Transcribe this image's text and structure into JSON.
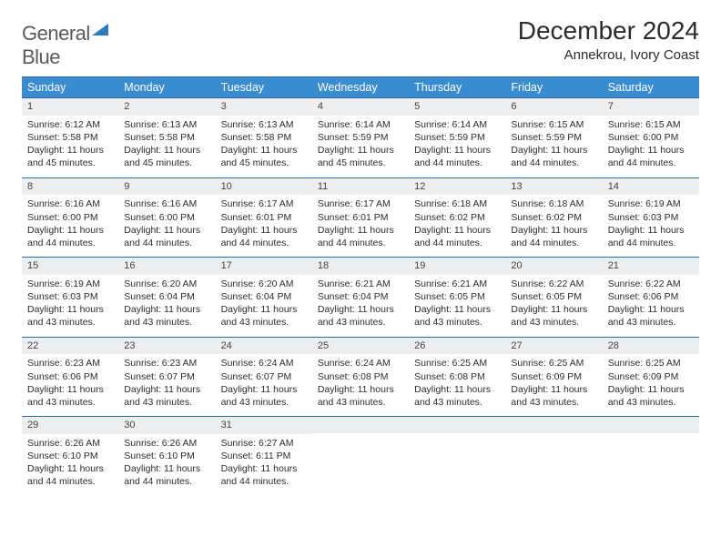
{
  "logo": {
    "word1": "General",
    "word2": "Blue"
  },
  "title": "December 2024",
  "location": "Annekrou, Ivory Coast",
  "day_headers": [
    "Sunday",
    "Monday",
    "Tuesday",
    "Wednesday",
    "Thursday",
    "Friday",
    "Saturday"
  ],
  "colors": {
    "header_bg": "#3a8cd1",
    "header_border": "#2d6ba8",
    "daynum_bg": "#eceef0",
    "logo_blue": "#2d7bc0"
  },
  "weeks": [
    [
      {
        "n": "1",
        "sr": "Sunrise: 6:12 AM",
        "ss": "Sunset: 5:58 PM",
        "d1": "Daylight: 11 hours",
        "d2": "and 45 minutes."
      },
      {
        "n": "2",
        "sr": "Sunrise: 6:13 AM",
        "ss": "Sunset: 5:58 PM",
        "d1": "Daylight: 11 hours",
        "d2": "and 45 minutes."
      },
      {
        "n": "3",
        "sr": "Sunrise: 6:13 AM",
        "ss": "Sunset: 5:58 PM",
        "d1": "Daylight: 11 hours",
        "d2": "and 45 minutes."
      },
      {
        "n": "4",
        "sr": "Sunrise: 6:14 AM",
        "ss": "Sunset: 5:59 PM",
        "d1": "Daylight: 11 hours",
        "d2": "and 45 minutes."
      },
      {
        "n": "5",
        "sr": "Sunrise: 6:14 AM",
        "ss": "Sunset: 5:59 PM",
        "d1": "Daylight: 11 hours",
        "d2": "and 44 minutes."
      },
      {
        "n": "6",
        "sr": "Sunrise: 6:15 AM",
        "ss": "Sunset: 5:59 PM",
        "d1": "Daylight: 11 hours",
        "d2": "and 44 minutes."
      },
      {
        "n": "7",
        "sr": "Sunrise: 6:15 AM",
        "ss": "Sunset: 6:00 PM",
        "d1": "Daylight: 11 hours",
        "d2": "and 44 minutes."
      }
    ],
    [
      {
        "n": "8",
        "sr": "Sunrise: 6:16 AM",
        "ss": "Sunset: 6:00 PM",
        "d1": "Daylight: 11 hours",
        "d2": "and 44 minutes."
      },
      {
        "n": "9",
        "sr": "Sunrise: 6:16 AM",
        "ss": "Sunset: 6:00 PM",
        "d1": "Daylight: 11 hours",
        "d2": "and 44 minutes."
      },
      {
        "n": "10",
        "sr": "Sunrise: 6:17 AM",
        "ss": "Sunset: 6:01 PM",
        "d1": "Daylight: 11 hours",
        "d2": "and 44 minutes."
      },
      {
        "n": "11",
        "sr": "Sunrise: 6:17 AM",
        "ss": "Sunset: 6:01 PM",
        "d1": "Daylight: 11 hours",
        "d2": "and 44 minutes."
      },
      {
        "n": "12",
        "sr": "Sunrise: 6:18 AM",
        "ss": "Sunset: 6:02 PM",
        "d1": "Daylight: 11 hours",
        "d2": "and 44 minutes."
      },
      {
        "n": "13",
        "sr": "Sunrise: 6:18 AM",
        "ss": "Sunset: 6:02 PM",
        "d1": "Daylight: 11 hours",
        "d2": "and 44 minutes."
      },
      {
        "n": "14",
        "sr": "Sunrise: 6:19 AM",
        "ss": "Sunset: 6:03 PM",
        "d1": "Daylight: 11 hours",
        "d2": "and 44 minutes."
      }
    ],
    [
      {
        "n": "15",
        "sr": "Sunrise: 6:19 AM",
        "ss": "Sunset: 6:03 PM",
        "d1": "Daylight: 11 hours",
        "d2": "and 43 minutes."
      },
      {
        "n": "16",
        "sr": "Sunrise: 6:20 AM",
        "ss": "Sunset: 6:04 PM",
        "d1": "Daylight: 11 hours",
        "d2": "and 43 minutes."
      },
      {
        "n": "17",
        "sr": "Sunrise: 6:20 AM",
        "ss": "Sunset: 6:04 PM",
        "d1": "Daylight: 11 hours",
        "d2": "and 43 minutes."
      },
      {
        "n": "18",
        "sr": "Sunrise: 6:21 AM",
        "ss": "Sunset: 6:04 PM",
        "d1": "Daylight: 11 hours",
        "d2": "and 43 minutes."
      },
      {
        "n": "19",
        "sr": "Sunrise: 6:21 AM",
        "ss": "Sunset: 6:05 PM",
        "d1": "Daylight: 11 hours",
        "d2": "and 43 minutes."
      },
      {
        "n": "20",
        "sr": "Sunrise: 6:22 AM",
        "ss": "Sunset: 6:05 PM",
        "d1": "Daylight: 11 hours",
        "d2": "and 43 minutes."
      },
      {
        "n": "21",
        "sr": "Sunrise: 6:22 AM",
        "ss": "Sunset: 6:06 PM",
        "d1": "Daylight: 11 hours",
        "d2": "and 43 minutes."
      }
    ],
    [
      {
        "n": "22",
        "sr": "Sunrise: 6:23 AM",
        "ss": "Sunset: 6:06 PM",
        "d1": "Daylight: 11 hours",
        "d2": "and 43 minutes."
      },
      {
        "n": "23",
        "sr": "Sunrise: 6:23 AM",
        "ss": "Sunset: 6:07 PM",
        "d1": "Daylight: 11 hours",
        "d2": "and 43 minutes."
      },
      {
        "n": "24",
        "sr": "Sunrise: 6:24 AM",
        "ss": "Sunset: 6:07 PM",
        "d1": "Daylight: 11 hours",
        "d2": "and 43 minutes."
      },
      {
        "n": "25",
        "sr": "Sunrise: 6:24 AM",
        "ss": "Sunset: 6:08 PM",
        "d1": "Daylight: 11 hours",
        "d2": "and 43 minutes."
      },
      {
        "n": "26",
        "sr": "Sunrise: 6:25 AM",
        "ss": "Sunset: 6:08 PM",
        "d1": "Daylight: 11 hours",
        "d2": "and 43 minutes."
      },
      {
        "n": "27",
        "sr": "Sunrise: 6:25 AM",
        "ss": "Sunset: 6:09 PM",
        "d1": "Daylight: 11 hours",
        "d2": "and 43 minutes."
      },
      {
        "n": "28",
        "sr": "Sunrise: 6:25 AM",
        "ss": "Sunset: 6:09 PM",
        "d1": "Daylight: 11 hours",
        "d2": "and 43 minutes."
      }
    ],
    [
      {
        "n": "29",
        "sr": "Sunrise: 6:26 AM",
        "ss": "Sunset: 6:10 PM",
        "d1": "Daylight: 11 hours",
        "d2": "and 44 minutes."
      },
      {
        "n": "30",
        "sr": "Sunrise: 6:26 AM",
        "ss": "Sunset: 6:10 PM",
        "d1": "Daylight: 11 hours",
        "d2": "and 44 minutes."
      },
      {
        "n": "31",
        "sr": "Sunrise: 6:27 AM",
        "ss": "Sunset: 6:11 PM",
        "d1": "Daylight: 11 hours",
        "d2": "and 44 minutes."
      },
      null,
      null,
      null,
      null
    ]
  ]
}
